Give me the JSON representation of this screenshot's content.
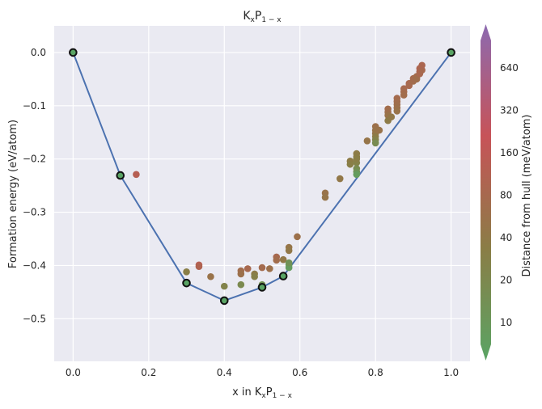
{
  "chart_data": {
    "type": "scatter",
    "title": "KxP1−x",
    "title_parts": {
      "a": "K",
      "b": "x",
      "c": "P",
      "d": "1 − x"
    },
    "xlabel": "x in KxP1−x",
    "xlabel_parts": {
      "a": "x in K",
      "b": "x",
      "c": "P",
      "d": "1 − x"
    },
    "ylabel": "Formation energy (eV/atom)",
    "xlim": [
      -0.05,
      1.05
    ],
    "ylim": [
      -0.58,
      0.05
    ],
    "x_ticks": [
      {
        "v": 0.0,
        "label": "0.0"
      },
      {
        "v": 0.2,
        "label": "0.2"
      },
      {
        "v": 0.4,
        "label": "0.4"
      },
      {
        "v": 0.6,
        "label": "0.6"
      },
      {
        "v": 0.8,
        "label": "0.8"
      },
      {
        "v": 1.0,
        "label": "1.0"
      }
    ],
    "y_ticks": [
      {
        "v": 0.0,
        "label": "0.0"
      },
      {
        "v": -0.1,
        "label": "−0.1"
      },
      {
        "v": -0.2,
        "label": "−0.2"
      },
      {
        "v": -0.3,
        "label": "−0.3"
      },
      {
        "v": -0.4,
        "label": "−0.4"
      },
      {
        "v": -0.5,
        "label": "−0.5"
      }
    ],
    "grid": true,
    "hull_color": "#4c72b0",
    "hull": [
      [
        0.0,
        0.0
      ],
      [
        0.125,
        -0.231
      ],
      [
        0.3,
        -0.433
      ],
      [
        0.4,
        -0.466
      ],
      [
        0.5,
        -0.441
      ],
      [
        0.556,
        -0.42
      ],
      [
        1.0,
        0.0
      ]
    ],
    "unstable_points": [
      [
        0.167,
        -0.229,
        120
      ],
      [
        0.3,
        -0.412,
        35
      ],
      [
        0.333,
        -0.399,
        120
      ],
      [
        0.333,
        -0.402,
        100
      ],
      [
        0.364,
        -0.421,
        55
      ],
      [
        0.4,
        -0.439,
        28
      ],
      [
        0.444,
        -0.436,
        22
      ],
      [
        0.444,
        -0.41,
        70
      ],
      [
        0.444,
        -0.416,
        60
      ],
      [
        0.462,
        -0.406,
        80
      ],
      [
        0.48,
        -0.416,
        40
      ],
      [
        0.48,
        -0.421,
        32
      ],
      [
        0.5,
        -0.436,
        16
      ],
      [
        0.5,
        -0.404,
        75
      ],
      [
        0.52,
        -0.406,
        60
      ],
      [
        0.538,
        -0.384,
        80
      ],
      [
        0.538,
        -0.39,
        70
      ],
      [
        0.556,
        -0.389,
        45
      ],
      [
        0.571,
        -0.366,
        50
      ],
      [
        0.571,
        -0.372,
        45
      ],
      [
        0.571,
        -0.399,
        12
      ],
      [
        0.571,
        -0.404,
        10
      ],
      [
        0.571,
        -0.395,
        15
      ],
      [
        0.593,
        -0.346,
        60
      ],
      [
        0.667,
        -0.264,
        55
      ],
      [
        0.667,
        -0.272,
        50
      ],
      [
        0.706,
        -0.237,
        45
      ],
      [
        0.733,
        -0.204,
        40
      ],
      [
        0.733,
        -0.21,
        35
      ],
      [
        0.75,
        -0.19,
        40
      ],
      [
        0.75,
        -0.196,
        38
      ],
      [
        0.75,
        -0.207,
        30
      ],
      [
        0.75,
        -0.218,
        20
      ],
      [
        0.75,
        -0.224,
        15
      ],
      [
        0.75,
        -0.229,
        10
      ],
      [
        0.75,
        -0.2,
        35
      ],
      [
        0.778,
        -0.166,
        50
      ],
      [
        0.8,
        -0.139,
        60
      ],
      [
        0.8,
        -0.146,
        55
      ],
      [
        0.8,
        -0.152,
        50
      ],
      [
        0.8,
        -0.158,
        40
      ],
      [
        0.8,
        -0.164,
        30
      ],
      [
        0.8,
        -0.17,
        20
      ],
      [
        0.81,
        -0.146,
        55
      ],
      [
        0.833,
        -0.106,
        70
      ],
      [
        0.833,
        -0.112,
        65
      ],
      [
        0.833,
        -0.118,
        55
      ],
      [
        0.833,
        -0.128,
        40
      ],
      [
        0.842,
        -0.121,
        45
      ],
      [
        0.857,
        -0.086,
        75
      ],
      [
        0.857,
        -0.092,
        70
      ],
      [
        0.857,
        -0.098,
        65
      ],
      [
        0.857,
        -0.104,
        60
      ],
      [
        0.857,
        -0.11,
        55
      ],
      [
        0.875,
        -0.068,
        80
      ],
      [
        0.875,
        -0.074,
        75
      ],
      [
        0.875,
        -0.08,
        70
      ],
      [
        0.889,
        -0.058,
        85
      ],
      [
        0.889,
        -0.062,
        80
      ],
      [
        0.9,
        -0.054,
        70
      ],
      [
        0.9,
        -0.049,
        75
      ],
      [
        0.909,
        -0.045,
        70
      ],
      [
        0.909,
        -0.05,
        65
      ],
      [
        0.917,
        -0.036,
        90
      ],
      [
        0.917,
        -0.04,
        85
      ],
      [
        0.917,
        -0.03,
        95
      ],
      [
        0.923,
        -0.033,
        80
      ],
      [
        0.923,
        -0.024,
        90
      ]
    ],
    "colorbar": {
      "label": "Distance from hull (meV/atom)",
      "ticks": [
        {
          "v": 10,
          "label": "10"
        },
        {
          "v": 20,
          "label": "20"
        },
        {
          "v": 40,
          "label": "40"
        },
        {
          "v": 80,
          "label": "80"
        },
        {
          "v": 160,
          "label": "160"
        },
        {
          "v": 320,
          "label": "320"
        },
        {
          "v": 640,
          "label": "640"
        }
      ],
      "range": [
        7,
        1000
      ],
      "scale": "log",
      "extend": "both",
      "colors": [
        "#5aa464",
        "#8a7d46",
        "#c75358",
        "#8c6ab0"
      ]
    }
  }
}
